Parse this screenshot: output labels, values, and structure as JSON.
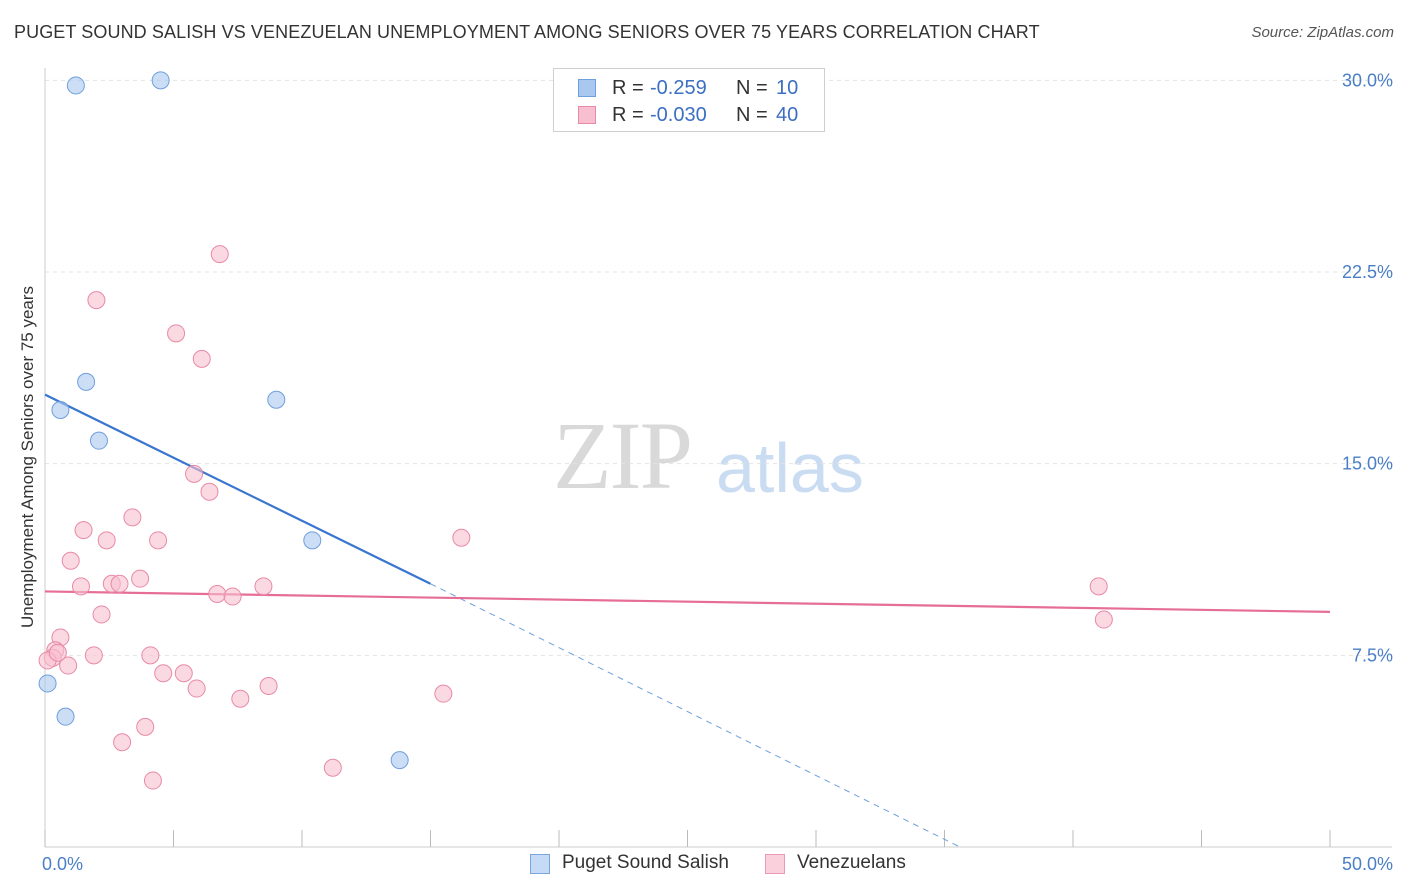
{
  "title": "PUGET SOUND SALISH VS VENEZUELAN UNEMPLOYMENT AMONG SENIORS OVER 75 YEARS CORRELATION CHART",
  "source": "Source: ZipAtlas.com",
  "watermark": {
    "zip": "ZIP",
    "atlas": "atlas"
  },
  "legend": {
    "rows": [
      {
        "r_label": "R =",
        "r_value": "-0.259",
        "n_label": "N =",
        "n_value": "10",
        "color": "#a9c8f0",
        "border": "#6f9fdc"
      },
      {
        "r_label": "R =",
        "r_value": "-0.030",
        "n_label": "N =",
        "n_value": "40",
        "color": "#f8bfd0",
        "border": "#e88aa6"
      }
    ]
  },
  "bottom_legend": [
    {
      "label": "Puget Sound Salish",
      "color": "#c5dbf5",
      "border": "#7aa7e0"
    },
    {
      "label": "Venezuelans",
      "color": "#fbd0dd",
      "border": "#eb9ab3"
    }
  ],
  "chart_data": {
    "type": "scatter",
    "title": "PUGET SOUND SALISH VS VENEZUELAN UNEMPLOYMENT AMONG SENIORS OVER 75 YEARS CORRELATION CHART",
    "xlabel": "",
    "ylabel": "Unemployment Among Seniors over 75 years",
    "xlim": [
      0,
      50
    ],
    "ylim": [
      0,
      31.5
    ],
    "x_tick_labels": [
      {
        "value": 0,
        "label": "0.0%"
      },
      {
        "value": 50,
        "label": "50.0%"
      }
    ],
    "y_tick_labels": [
      {
        "value": 7.5,
        "label": "7.5%"
      },
      {
        "value": 15,
        "label": "15.0%"
      },
      {
        "value": 22.5,
        "label": "22.5%"
      },
      {
        "value": 30,
        "label": "30.0%"
      }
    ],
    "x_minor_ticks": [
      5,
      10,
      15,
      20,
      25,
      30,
      35,
      40,
      45
    ],
    "grid": true,
    "series": [
      {
        "name": "Puget Sound Salish",
        "color": "#a9c8f0",
        "stroke": "#6f9fdc",
        "points": [
          {
            "x": 1.2,
            "y": 29.8
          },
          {
            "x": 4.5,
            "y": 30.0
          },
          {
            "x": 1.6,
            "y": 18.2
          },
          {
            "x": 0.6,
            "y": 17.1
          },
          {
            "x": 9.0,
            "y": 17.5
          },
          {
            "x": 2.1,
            "y": 15.9
          },
          {
            "x": 10.4,
            "y": 12.0
          },
          {
            "x": 0.1,
            "y": 6.4
          },
          {
            "x": 0.8,
            "y": 5.1
          },
          {
            "x": 13.8,
            "y": 3.4
          }
        ],
        "trend": {
          "x0": 0,
          "y0": 17.7,
          "x1": 15,
          "y1": 10.3,
          "dash_to_x": 35.6,
          "dash_to_y": 0
        }
      },
      {
        "name": "Venezuelans",
        "color": "#f8bfd0",
        "stroke": "#e88aa6",
        "points": [
          {
            "x": 6.8,
            "y": 23.2
          },
          {
            "x": 2.0,
            "y": 21.4
          },
          {
            "x": 5.1,
            "y": 20.1
          },
          {
            "x": 6.1,
            "y": 19.1
          },
          {
            "x": 5.8,
            "y": 14.6
          },
          {
            "x": 6.4,
            "y": 13.9
          },
          {
            "x": 3.4,
            "y": 12.9
          },
          {
            "x": 1.5,
            "y": 12.4
          },
          {
            "x": 2.4,
            "y": 12.0
          },
          {
            "x": 4.4,
            "y": 12.0
          },
          {
            "x": 16.2,
            "y": 12.1
          },
          {
            "x": 1.0,
            "y": 11.2
          },
          {
            "x": 1.4,
            "y": 10.2
          },
          {
            "x": 2.6,
            "y": 10.3
          },
          {
            "x": 2.9,
            "y": 10.3
          },
          {
            "x": 3.7,
            "y": 10.5
          },
          {
            "x": 8.5,
            "y": 10.2
          },
          {
            "x": 6.7,
            "y": 9.9
          },
          {
            "x": 7.3,
            "y": 9.8
          },
          {
            "x": 2.2,
            "y": 9.1
          },
          {
            "x": 41.0,
            "y": 10.2
          },
          {
            "x": 41.2,
            "y": 8.9
          },
          {
            "x": 0.6,
            "y": 8.2
          },
          {
            "x": 0.4,
            "y": 7.7
          },
          {
            "x": 1.9,
            "y": 7.5
          },
          {
            "x": 4.1,
            "y": 7.5
          },
          {
            "x": 0.9,
            "y": 7.1
          },
          {
            "x": 0.3,
            "y": 7.4
          },
          {
            "x": 4.6,
            "y": 6.8
          },
          {
            "x": 5.4,
            "y": 6.8
          },
          {
            "x": 5.9,
            "y": 6.2
          },
          {
            "x": 8.7,
            "y": 6.3
          },
          {
            "x": 7.6,
            "y": 5.8
          },
          {
            "x": 15.5,
            "y": 6.0
          },
          {
            "x": 3.9,
            "y": 4.7
          },
          {
            "x": 3.0,
            "y": 4.1
          },
          {
            "x": 11.2,
            "y": 3.1
          },
          {
            "x": 4.2,
            "y": 2.6
          },
          {
            "x": 0.1,
            "y": 7.3
          },
          {
            "x": 0.5,
            "y": 7.6
          }
        ],
        "trend": {
          "x0": 0,
          "y0": 10.0,
          "x1": 50,
          "y1": 9.2
        }
      }
    ]
  }
}
